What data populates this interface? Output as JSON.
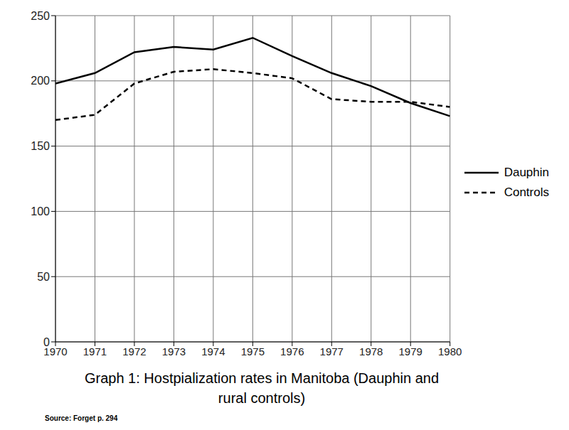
{
  "chart_data": {
    "type": "line",
    "title": "Graph 1: Hostpialization rates in Manitoba (Dauphin and\nrural controls)",
    "source": "Source: Forget p. 294",
    "x": [
      1970,
      1971,
      1972,
      1973,
      1974,
      1975,
      1976,
      1977,
      1978,
      1979,
      1980
    ],
    "series": [
      {
        "name": "Dauphin",
        "color": "#000000",
        "line_style": "solid",
        "values": [
          198,
          206,
          222,
          226,
          224,
          233,
          219,
          206,
          196,
          183,
          173
        ]
      },
      {
        "name": "Controls",
        "color": "#000000",
        "line_style": "dashed",
        "values": [
          170,
          174,
          198,
          207,
          209,
          206,
          202,
          186,
          184,
          184,
          180
        ]
      }
    ],
    "xlim": [
      1970,
      1980
    ],
    "xticks": [
      1970,
      1971,
      1972,
      1973,
      1974,
      1975,
      1976,
      1977,
      1978,
      1979,
      1980
    ],
    "ylim": [
      0,
      250
    ],
    "yticks": [
      0,
      50,
      100,
      150,
      200,
      250
    ],
    "grid": true,
    "legend": "right"
  }
}
